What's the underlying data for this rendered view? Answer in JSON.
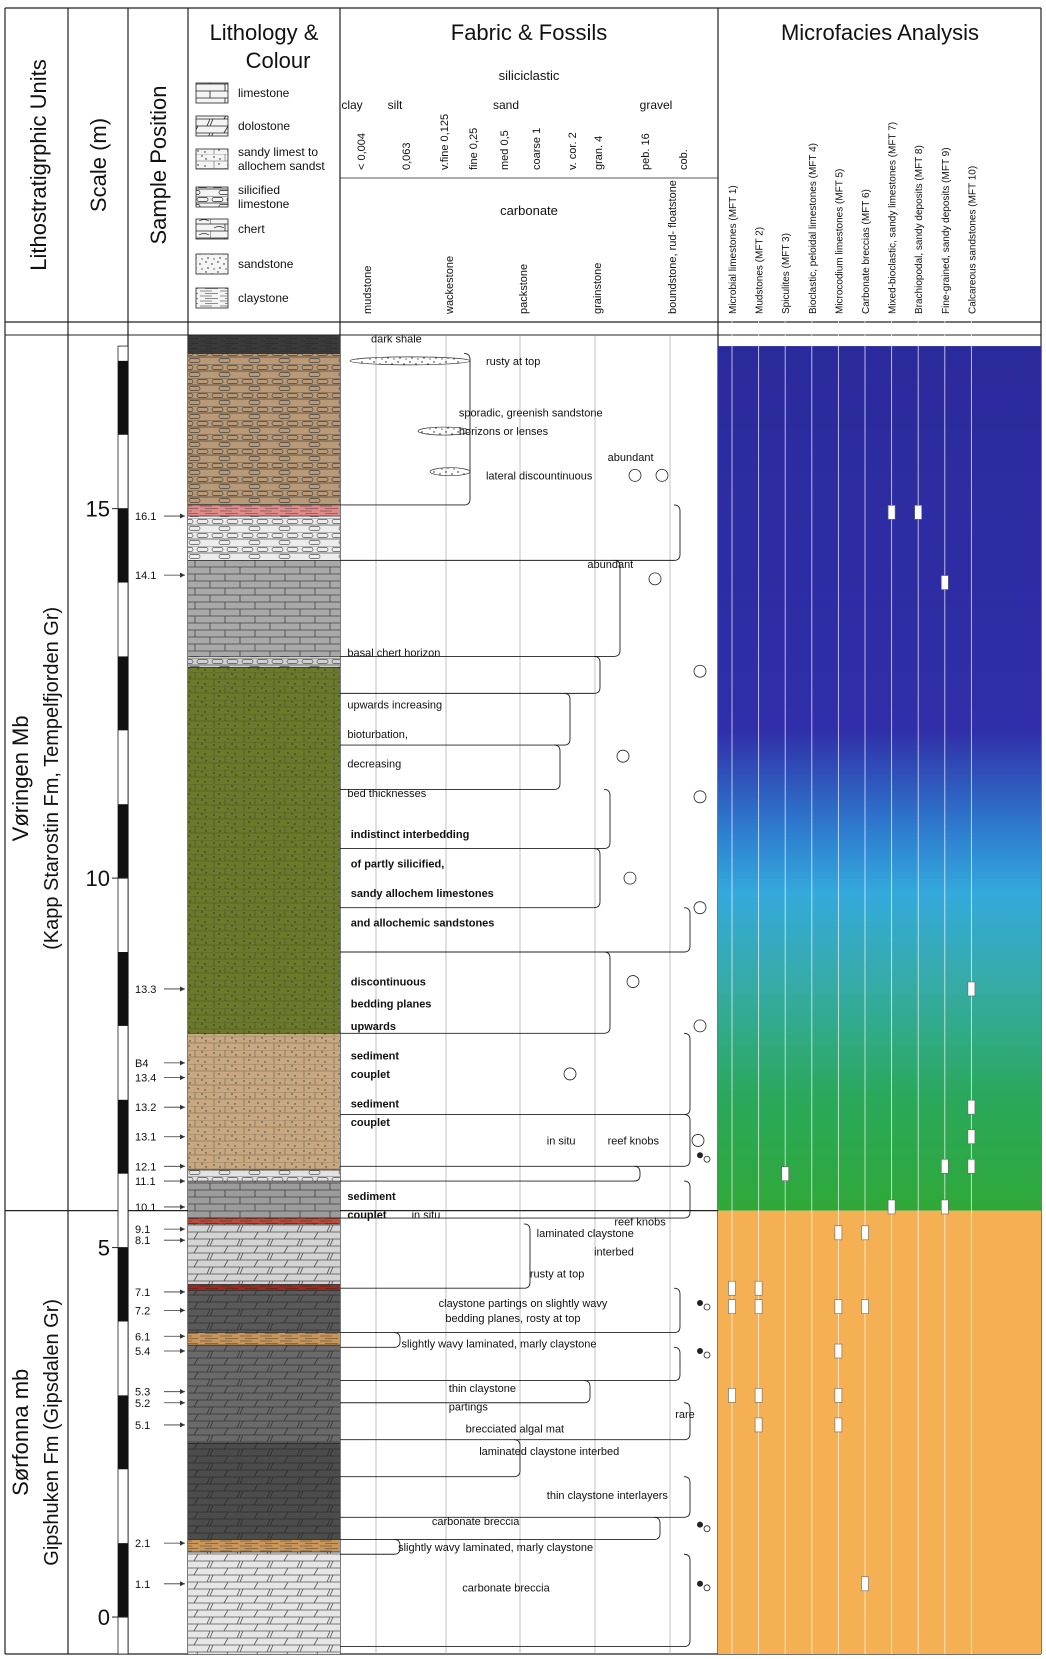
{
  "headers": {
    "litho_units": "Lithostratigrphic  Units",
    "scale": "Scale (m)",
    "sample_position": "Sample Position",
    "lithology_line1": "Lithology &",
    "lithology_line2": "Colour",
    "fabric": "Fabric & Fossils",
    "microfacies": "Microfacies Analysis",
    "siliciclastic": "siliciclastic",
    "carbonate": "carbonate"
  },
  "lithology_legend": [
    {
      "pattern": "limestone",
      "label": "limestone"
    },
    {
      "pattern": "dolostone",
      "label": "dolostone"
    },
    {
      "pattern": "sandy",
      "label": "sandy limest to",
      "label2": "allochem sandst"
    },
    {
      "pattern": "silicified",
      "label": "silicified",
      "label2": "limestone"
    },
    {
      "pattern": "chert",
      "label": "chert"
    },
    {
      "pattern": "sandstone",
      "label": "sandstone"
    },
    {
      "pattern": "claystone",
      "label": "claystone"
    }
  ],
  "grain_size": {
    "classes": [
      "clay",
      "silt",
      "sand",
      "gravel"
    ],
    "values": [
      "< 0,004",
      "0,063",
      "v.fine 0,125",
      "fine 0,25",
      "med 0,5",
      "coarse 1",
      "v. cor. 2",
      "gran. 4",
      "peb. 16",
      "cob."
    ],
    "carbonate_classes": [
      "mudstone",
      "wackestone",
      "packstone",
      "grainstone",
      "boundstone, rud- floatstone"
    ]
  },
  "mft_columns": [
    "Microbial limestones (MFT 1)",
    "Mudstones  (MFT 2)",
    "Spiculites (MFT 3)",
    "Bioclastic, peloidal limestones (MFT 4)",
    "Microcodium limestones (MFT 5)",
    "Carbonate breccias (MFT 6)",
    "Mixed-bioclastic, sandy limestones (MFT 7)",
    "Brachiopodal, sandy deposits (MFT 8)",
    "Fine-grained, sandy deposits (MFT 9)",
    "Calcareous sandstones (MFT 10)"
  ],
  "units": [
    {
      "line1": "Vøringen Mb",
      "line2": "(Kapp Starostin Fm, Tempelfjorden Gr)",
      "top_m": 17.2,
      "bottom_m": 5.5
    },
    {
      "line1": "Sørfonna mb",
      "line2": "Gipshuken Fm (Gipsdalen Gr)",
      "top_m": 5.5,
      "bottom_m": -0.5
    }
  ],
  "scale_ticks": [
    {
      "m": 15,
      "label": "15"
    },
    {
      "m": 10,
      "label": "10"
    },
    {
      "m": 5,
      "label": "5"
    },
    {
      "m": 0,
      "label": "0"
    }
  ],
  "samples": [
    {
      "label": "16.1",
      "m": 14.9
    },
    {
      "label": "14.1",
      "m": 14.1
    },
    {
      "label": "13.3",
      "m": 8.5
    },
    {
      "label": "B4",
      "m": 7.5
    },
    {
      "label": "13.4",
      "m": 7.3
    },
    {
      "label": "13.2",
      "m": 6.9
    },
    {
      "label": "13.1",
      "m": 6.5
    },
    {
      "label": "12.1",
      "m": 6.1
    },
    {
      "label": "11.1",
      "m": 5.9
    },
    {
      "label": "10.1",
      "m": 5.55
    },
    {
      "label": "9.1",
      "m": 5.25
    },
    {
      "label": "8.1",
      "m": 5.1
    },
    {
      "label": "7.1",
      "m": 4.4
    },
    {
      "label": "7.2",
      "m": 4.15
    },
    {
      "label": "6.1",
      "m": 3.8
    },
    {
      "label": "5.4",
      "m": 3.6
    },
    {
      "label": "5.3",
      "m": 3.05
    },
    {
      "label": "5.2",
      "m": 2.9
    },
    {
      "label": "5.1",
      "m": 2.6
    },
    {
      "label": "2.1",
      "m": 1.0
    },
    {
      "label": "1.1",
      "m": 0.45
    }
  ],
  "layers": [
    {
      "top": 17.35,
      "bottom": 17.1,
      "pattern": "claystone",
      "color": "#3a3a3a"
    },
    {
      "top": 17.1,
      "bottom": 15.05,
      "pattern": "silicified",
      "color": "#b89a78"
    },
    {
      "top": 15.05,
      "bottom": 14.9,
      "pattern": "claystone",
      "color": "#e08a8a"
    },
    {
      "top": 14.9,
      "bottom": 14.3,
      "pattern": "silicified",
      "color": "#ececec"
    },
    {
      "top": 14.3,
      "bottom": 13.0,
      "pattern": "limestone",
      "color": "#a9a9a9"
    },
    {
      "top": 13.0,
      "bottom": 12.85,
      "pattern": "silicified",
      "color": "#d0d0d0"
    },
    {
      "top": 12.85,
      "bottom": 7.9,
      "pattern": "sandy",
      "color": "#6b7a2a"
    },
    {
      "top": 7.9,
      "bottom": 6.05,
      "pattern": "sandy",
      "color": "#c8a880"
    },
    {
      "top": 6.05,
      "bottom": 5.9,
      "pattern": "silicified",
      "color": "#e2e2e2"
    },
    {
      "top": 5.9,
      "bottom": 5.4,
      "pattern": "limestone",
      "color": "#9c9c9c"
    },
    {
      "top": 5.4,
      "bottom": 5.32,
      "pattern": "claystone",
      "color": "#c04a3a"
    },
    {
      "top": 5.32,
      "bottom": 4.5,
      "pattern": "dolostone",
      "color": "#d4d4d4"
    },
    {
      "top": 4.5,
      "bottom": 4.42,
      "pattern": "claystone",
      "color": "#9a2a20"
    },
    {
      "top": 4.42,
      "bottom": 3.85,
      "pattern": "dolostone",
      "color": "#5a5a5a"
    },
    {
      "top": 3.85,
      "bottom": 3.68,
      "pattern": "claystone",
      "color": "#c8965a"
    },
    {
      "top": 3.68,
      "bottom": 2.35,
      "pattern": "dolostone",
      "color": "#6a6a6a"
    },
    {
      "top": 2.35,
      "bottom": 1.05,
      "pattern": "dolostone",
      "color": "#4c4c4c"
    },
    {
      "top": 1.05,
      "bottom": 0.88,
      "pattern": "claystone",
      "color": "#c8965a"
    },
    {
      "top": 0.88,
      "bottom": -0.5,
      "pattern": "dolostone",
      "color": "#e6e6e6"
    }
  ],
  "annotations": [
    {
      "text": "dark shale",
      "m": 17.3,
      "col": 0.08
    },
    {
      "text": "rusty at top",
      "m": 17.0,
      "col": 0.42
    },
    {
      "text": "sporadic, greenish sandstone",
      "m": 16.3,
      "col": 0.34
    },
    {
      "text": "horizons or lenses",
      "m": 16.05,
      "col": 0.34
    },
    {
      "text": "lateral discountinuous",
      "m": 15.45,
      "col": 0.42
    },
    {
      "text": "abundant",
      "m": 15.7,
      "col": 0.78
    },
    {
      "text": "abundant",
      "m": 14.25,
      "col": 0.72
    },
    {
      "text": "basal chert horizon",
      "m": 13.05,
      "col": 0.01
    },
    {
      "text": "upwards increasing",
      "m": 12.35,
      "col": 0.01
    },
    {
      "text": "bioturbation,",
      "m": 11.95,
      "col": 0.01
    },
    {
      "text": "decreasing",
      "m": 11.55,
      "col": 0.01
    },
    {
      "text": "bed thicknesses",
      "m": 11.15,
      "col": 0.01
    },
    {
      "text": "indistinct interbedding",
      "m": 10.6,
      "col": 0.02,
      "bold": true
    },
    {
      "text": "of partly silicified,",
      "m": 10.2,
      "col": 0.02,
      "bold": true
    },
    {
      "text": "sandy allochem limestones",
      "m": 9.8,
      "col": 0.02,
      "bold": true
    },
    {
      "text": "and allochemic sandstones",
      "m": 9.4,
      "col": 0.02,
      "bold": true
    },
    {
      "text": "discontinuous",
      "m": 8.6,
      "col": 0.02,
      "bold": true
    },
    {
      "text": "bedding planes",
      "m": 8.3,
      "col": 0.02,
      "bold": true
    },
    {
      "text": "upwards",
      "m": 8.0,
      "col": 0.02,
      "bold": true
    },
    {
      "text": "sediment",
      "m": 7.6,
      "col": 0.02,
      "bold": true
    },
    {
      "text": "couplet",
      "m": 7.35,
      "col": 0.02,
      "bold": true
    },
    {
      "text": "sediment",
      "m": 6.95,
      "col": 0.02,
      "bold": true
    },
    {
      "text": "couplet",
      "m": 6.7,
      "col": 0.02,
      "bold": true
    },
    {
      "text": "in situ",
      "m": 6.45,
      "col": 0.6
    },
    {
      "text": "reef knobs",
      "m": 6.45,
      "col": 0.78
    },
    {
      "text": "sediment",
      "m": 5.7,
      "col": 0.01,
      "bold": true
    },
    {
      "text": "couplet",
      "m": 5.45,
      "col": 0.01,
      "bold": true
    },
    {
      "text": "in situ",
      "m": 5.45,
      "col": 0.2
    },
    {
      "text": "reef knobs",
      "m": 5.35,
      "col": 0.8
    },
    {
      "text": "laminated claystone",
      "m": 5.2,
      "col": 0.57
    },
    {
      "text": "interbed",
      "m": 4.95,
      "col": 0.74
    },
    {
      "text": "rusty at top",
      "m": 4.65,
      "col": 0.55
    },
    {
      "text": "claystone partings on slightly wavy",
      "m": 4.25,
      "col": 0.28
    },
    {
      "text": "bedding planes, rosty at top",
      "m": 4.05,
      "col": 0.3
    },
    {
      "text": "slightly wavy laminated, marly claystone",
      "m": 3.7,
      "col": 0.17
    },
    {
      "text": "thin claystone",
      "m": 3.1,
      "col": 0.31
    },
    {
      "text": "partings",
      "m": 2.85,
      "col": 0.31
    },
    {
      "text": "brecciated algal mat",
      "m": 2.55,
      "col": 0.36
    },
    {
      "text": "rare",
      "m": 2.75,
      "col": 0.98
    },
    {
      "text": "laminated claystone interbed",
      "m": 2.25,
      "col": 0.4
    },
    {
      "text": "thin claystone interlayers",
      "m": 1.65,
      "col": 0.6
    },
    {
      "text": "carbonate breccia",
      "m": 1.3,
      "col": 0.26
    },
    {
      "text": "slightly wavy laminated, marly claystone",
      "m": 0.95,
      "col": 0.16
    },
    {
      "text": "carbonate breccia",
      "m": 0.4,
      "col": 0.35
    }
  ],
  "gradient": {
    "stops": [
      {
        "m": 17.2,
        "color": "#2b2a9c"
      },
      {
        "m": 12.0,
        "color": "#302ea8"
      },
      {
        "m": 10.6,
        "color": "#2e7fd0"
      },
      {
        "m": 9.8,
        "color": "#34a9dc"
      },
      {
        "m": 8.6,
        "color": "#36aba8"
      },
      {
        "m": 7.0,
        "color": "#2aa85a"
      },
      {
        "m": 5.5,
        "color": "#30a838"
      }
    ],
    "lower_color": "#f4b052"
  },
  "mft_markers": [
    {
      "mft": 7,
      "m": 14.95
    },
    {
      "mft": 8,
      "m": 14.95
    },
    {
      "mft": 9,
      "m": 14.0
    },
    {
      "mft": 10,
      "m": 8.5
    },
    {
      "mft": 10,
      "m": 6.9
    },
    {
      "mft": 10,
      "m": 6.5
    },
    {
      "mft": 3,
      "m": 6.0
    },
    {
      "mft": 9,
      "m": 6.1
    },
    {
      "mft": 10,
      "m": 6.1
    },
    {
      "mft": 7,
      "m": 5.55
    },
    {
      "mft": 9,
      "m": 5.55
    },
    {
      "mft": 5,
      "m": 5.2
    },
    {
      "mft": 6,
      "m": 5.2
    },
    {
      "mft": 1,
      "m": 4.45
    },
    {
      "mft": 2,
      "m": 4.45
    },
    {
      "mft": 1,
      "m": 4.2
    },
    {
      "mft": 2,
      "m": 4.2
    },
    {
      "mft": 5,
      "m": 4.2
    },
    {
      "mft": 6,
      "m": 4.2
    },
    {
      "mft": 5,
      "m": 3.6
    },
    {
      "mft": 1,
      "m": 3.0
    },
    {
      "mft": 2,
      "m": 3.0
    },
    {
      "mft": 5,
      "m": 3.0
    },
    {
      "mft": 2,
      "m": 2.6
    },
    {
      "mft": 5,
      "m": 2.6
    },
    {
      "mft": 6,
      "m": 0.45
    }
  ]
}
